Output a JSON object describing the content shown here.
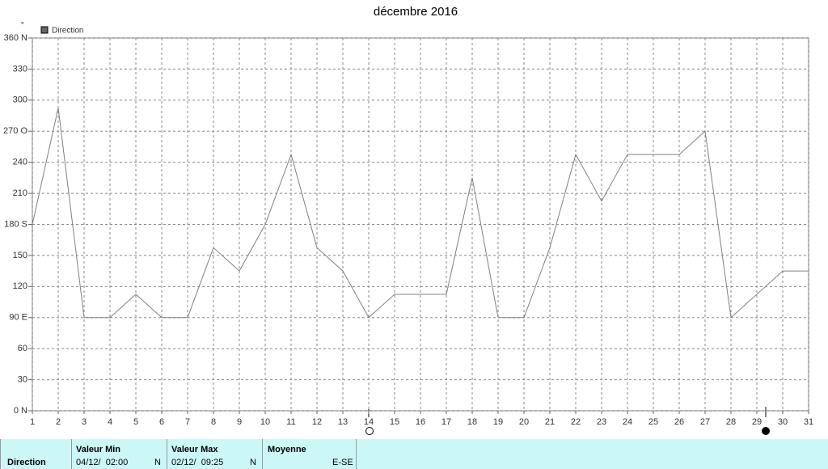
{
  "chart_data": {
    "type": "line",
    "title": "décembre 2016",
    "y_label": "°",
    "x": [
      1,
      2,
      3,
      4,
      5,
      6,
      7,
      8,
      9,
      10,
      11,
      12,
      13,
      14,
      15,
      16,
      17,
      18,
      19,
      20,
      21,
      22,
      23,
      24,
      25,
      26,
      27,
      28,
      29,
      30,
      31
    ],
    "series": [
      {
        "name": "Direction",
        "color": "#808080",
        "values": [
          180,
          292.5,
          90,
          90,
          112.5,
          90,
          90,
          157.5,
          135,
          180,
          247.5,
          157.5,
          135,
          90,
          112.5,
          112.5,
          112.5,
          225,
          90,
          90,
          157.5,
          247.5,
          202.5,
          247.5,
          247.5,
          247.5,
          270,
          90,
          112.5,
          135,
          135
        ]
      }
    ],
    "xlim": [
      1,
      31
    ],
    "xticks": [
      1,
      2,
      3,
      4,
      5,
      6,
      7,
      8,
      9,
      10,
      11,
      12,
      13,
      14,
      15,
      16,
      17,
      18,
      19,
      20,
      21,
      22,
      23,
      24,
      25,
      26,
      27,
      28,
      29,
      30,
      31
    ],
    "ylim": [
      0,
      360
    ],
    "yticks": [
      {
        "value": 0,
        "label": "0 N"
      },
      30,
      60,
      {
        "value": 90,
        "label": "90 E"
      },
      120,
      150,
      {
        "value": 180,
        "label": "180 S"
      },
      210,
      240,
      {
        "value": 270,
        "label": "270 O"
      },
      300,
      330,
      {
        "value": 360,
        "label": "360 N"
      }
    ],
    "grid": true
  },
  "summary": {
    "name": "Direction",
    "min": {
      "title": "Valeur Min",
      "date": "04/12/  02:00",
      "value": "N"
    },
    "max": {
      "title": "Valeur Max",
      "date": "02/12/  09:25",
      "value": "N"
    },
    "mean": {
      "title": "Moyenne",
      "value": "E-SE"
    }
  }
}
